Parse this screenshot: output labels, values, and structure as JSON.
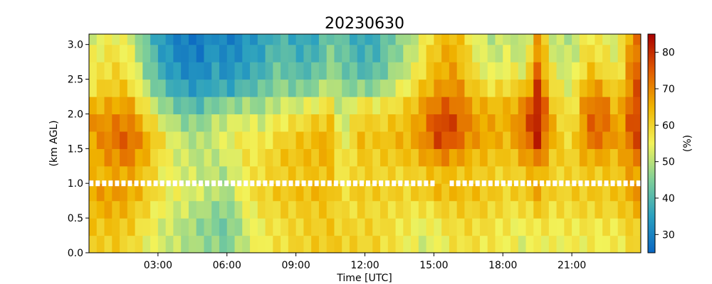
{
  "chart_data": {
    "type": "heatmap",
    "title": "20230630",
    "xlabel": "Time [UTC]",
    "ylabel": "(km AGL)",
    "colorbar_label": "(%)",
    "x_tick_labels": [
      "03:00",
      "06:00",
      "09:00",
      "12:00",
      "15:00",
      "18:00",
      "21:00"
    ],
    "x_tick_hours": [
      3,
      6,
      9,
      12,
      15,
      18,
      21
    ],
    "xlim_hours": [
      0,
      24
    ],
    "y_tick_labels": [
      "0.0",
      "0.5",
      "1.0",
      "1.5",
      "2.0",
      "2.5",
      "3.0"
    ],
    "y_ticks": [
      0.0,
      0.5,
      1.0,
      1.5,
      2.0,
      2.5,
      3.0
    ],
    "ylim": [
      0,
      3.15
    ],
    "colorbar_tick_labels": [
      "30",
      "40",
      "50",
      "60",
      "70",
      "80"
    ],
    "colorbar_ticks": [
      30,
      40,
      50,
      60,
      70,
      80
    ],
    "clim": [
      25,
      85
    ],
    "colormap": [
      "#0a66c2",
      "#2aa0c0",
      "#7fcf98",
      "#f2f35a",
      "#f0b400",
      "#e05a00",
      "#a80000"
    ],
    "marker_level_km": 1.0,
    "marker_color": "#ffffff",
    "marker_gap_hours": [
      15.1,
      15.6
    ],
    "time_step_minutes": 20,
    "height_levels_km": [
      0.0,
      0.25,
      0.5,
      0.75,
      1.0,
      1.25,
      1.5,
      1.75,
      2.0,
      2.25,
      2.5,
      2.75,
      3.0
    ],
    "profile_anchor_hours": [
      0,
      1,
      1.7,
      2.5,
      3.3,
      4,
      4.8,
      5.5,
      6,
      6.8,
      7.5,
      8.3,
      9,
      9.8,
      10.5,
      11,
      11.8,
      12.5,
      13.2,
      14,
      14.6,
      15.3,
      16,
      16.7,
      17.5,
      18.3,
      19,
      19.5,
      20.2,
      21,
      21.7,
      22.4,
      23,
      23.7
    ],
    "profile_anchor_values": [
      [
        60,
        62,
        64,
        66,
        63,
        65,
        66,
        68,
        64,
        58,
        55,
        54,
        52
      ],
      [
        62,
        63,
        66,
        68,
        66,
        69,
        72,
        70,
        66,
        62,
        60,
        58,
        56
      ],
      [
        60,
        62,
        64,
        67,
        67,
        72,
        75,
        72,
        68,
        62,
        58,
        56,
        54
      ],
      [
        55,
        57,
        59,
        62,
        62,
        64,
        66,
        62,
        56,
        50,
        46,
        44,
        42
      ],
      [
        52,
        52,
        54,
        56,
        55,
        56,
        57,
        52,
        46,
        40,
        36,
        34,
        33
      ],
      [
        50,
        50,
        52,
        54,
        53,
        52,
        51,
        47,
        42,
        36,
        32,
        30,
        29
      ],
      [
        48,
        47,
        49,
        52,
        51,
        50,
        49,
        46,
        40,
        34,
        31,
        29,
        28
      ],
      [
        46,
        45,
        47,
        50,
        50,
        51,
        52,
        50,
        45,
        38,
        35,
        34,
        33
      ],
      [
        44,
        43,
        45,
        48,
        49,
        52,
        54,
        52,
        46,
        36,
        32,
        30,
        28
      ],
      [
        52,
        52,
        54,
        57,
        56,
        57,
        57,
        54,
        48,
        40,
        36,
        34,
        33
      ],
      [
        56,
        56,
        58,
        60,
        59,
        58,
        56,
        52,
        47,
        42,
        38,
        36,
        35
      ],
      [
        58,
        58,
        60,
        62,
        61,
        62,
        60,
        57,
        52,
        47,
        44,
        42,
        40
      ],
      [
        60,
        60,
        61,
        63,
        62,
        63,
        62,
        58,
        52,
        44,
        40,
        38,
        36
      ],
      [
        61,
        61,
        62,
        64,
        63,
        64,
        64,
        61,
        55,
        46,
        41,
        38,
        37
      ],
      [
        62,
        62,
        62,
        64,
        63,
        65,
        66,
        63,
        58,
        52,
        47,
        45,
        43
      ],
      [
        61,
        60,
        58,
        58,
        56,
        55,
        52,
        50,
        48,
        46,
        44,
        43,
        42
      ],
      [
        60,
        60,
        60,
        62,
        61,
        62,
        64,
        62,
        58,
        46,
        40,
        38,
        36
      ],
      [
        60,
        60,
        59,
        61,
        60,
        61,
        62,
        60,
        56,
        46,
        41,
        39,
        38
      ],
      [
        58,
        58,
        59,
        61,
        60,
        62,
        64,
        62,
        58,
        52,
        47,
        45,
        44
      ],
      [
        55,
        56,
        58,
        60,
        60,
        63,
        65,
        64,
        62,
        57,
        53,
        50,
        49
      ],
      [
        52,
        54,
        57,
        62,
        62,
        66,
        70,
        70,
        68,
        64,
        60,
        58,
        56
      ],
      [
        55,
        57,
        60,
        64,
        64,
        70,
        78,
        79,
        74,
        68,
        66,
        65,
        63
      ],
      [
        58,
        59,
        61,
        64,
        63,
        68,
        74,
        76,
        73,
        70,
        67,
        66,
        65
      ],
      [
        58,
        59,
        61,
        63,
        62,
        64,
        68,
        68,
        66,
        62,
        58,
        56,
        55
      ],
      [
        57,
        58,
        60,
        62,
        61,
        63,
        66,
        66,
        64,
        58,
        53,
        51,
        50
      ],
      [
        56,
        56,
        58,
        60,
        60,
        62,
        64,
        65,
        64,
        60,
        56,
        53,
        52
      ],
      [
        53,
        55,
        58,
        62,
        62,
        67,
        72,
        74,
        70,
        62,
        54,
        50,
        48
      ],
      [
        56,
        58,
        62,
        66,
        66,
        72,
        80,
        82,
        82,
        78,
        74,
        70,
        68
      ],
      [
        55,
        56,
        58,
        60,
        60,
        62,
        64,
        64,
        62,
        58,
        55,
        52,
        51
      ],
      [
        56,
        57,
        59,
        61,
        60,
        60,
        58,
        56,
        55,
        53,
        51,
        50,
        49
      ],
      [
        56,
        57,
        60,
        62,
        62,
        66,
        72,
        73,
        72,
        68,
        63,
        60,
        58
      ],
      [
        56,
        57,
        60,
        62,
        62,
        66,
        72,
        74,
        72,
        66,
        60,
        57,
        55
      ],
      [
        56,
        57,
        60,
        62,
        62,
        63,
        65,
        64,
        62,
        58,
        55,
        53,
        52
      ],
      [
        60,
        62,
        65,
        68,
        68,
        72,
        76,
        78,
        77,
        75,
        74,
        73,
        72
      ]
    ]
  }
}
